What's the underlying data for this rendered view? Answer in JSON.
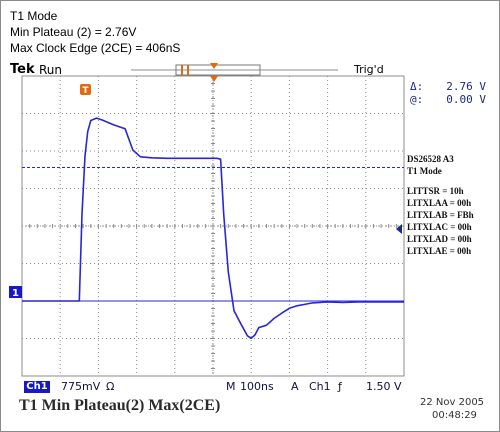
{
  "header_notes": [
    "T1 Mode",
    "Min Plateau (2) = 2.76V",
    "Max Clock Edge (2CE) = 406nS"
  ],
  "scope": {
    "brand": "Tek",
    "run_state": "Run",
    "trigger_state": "Trig'd",
    "trigger_marker_label": "T",
    "ch1_marker_label": "1",
    "cursor_delta_label": "Δ:",
    "cursor_delta_value": "2.76 V",
    "cursor_at_label": "@:",
    "cursor_at_value": "0.00 V",
    "info_lines": [
      "DS26528  A3",
      "T1 Mode",
      "",
      "LITTSR = 10h",
      "LITXLAA = 00h",
      "LITXLAB = FBh",
      "LITXLAC = 00h",
      "LITXLAD = 00h",
      "LITXLAE = 00h"
    ],
    "bottom": {
      "ch_label": "Ch1",
      "ch_scale": "775mV",
      "ch_coupling": "Ω",
      "timebase_prefix": "M",
      "timebase": "100ns",
      "trigger_prefix": "A",
      "trigger_source": "Ch1",
      "trigger_slope": "ƒ",
      "trigger_level": "1.50 V"
    },
    "caption": "T1 Min Plateau(2)  Max(2CE)",
    "date": "22 Nov 2005",
    "time": "00:48:29"
  },
  "colors": {
    "trace": "#2727d8",
    "grid": "#8c8c8c",
    "accent_orange": "#e06a10",
    "ch1_blue": "#1818c8"
  },
  "chart_data": {
    "type": "line",
    "title": "T1 Min Plateau(2)  Max(2CE)",
    "x_unit": "ns",
    "y_unit": "V",
    "x_per_div": 100,
    "y_per_div": 0.775,
    "xlim": [
      0,
      1000
    ],
    "ylim": [
      -1.55,
      4.65
    ],
    "grid": true,
    "cursors": {
      "delta_v": 2.76,
      "at_v": 0.0
    },
    "series": [
      {
        "x": [
          0,
          40,
          100,
          150,
          157,
          165,
          172,
          180,
          195,
          210,
          240,
          270,
          290,
          310,
          340,
          380,
          420,
          470,
          510,
          520,
          528,
          540,
          555,
          575,
          590,
          600,
          610,
          620,
          640,
          660,
          680,
          700,
          720,
          740,
          760,
          780,
          800,
          840,
          880,
          930,
          980,
          1000
        ],
        "y": [
          0.0,
          0.0,
          0.0,
          0.0,
          1.8,
          3.0,
          3.5,
          3.73,
          3.78,
          3.74,
          3.64,
          3.56,
          3.12,
          2.98,
          2.96,
          2.95,
          2.95,
          2.95,
          2.95,
          2.93,
          1.8,
          0.6,
          -0.2,
          -0.5,
          -0.72,
          -0.77,
          -0.7,
          -0.55,
          -0.5,
          -0.36,
          -0.25,
          -0.15,
          -0.1,
          -0.07,
          -0.04,
          -0.03,
          -0.02,
          -0.03,
          -0.02,
          -0.02,
          -0.02,
          -0.02
        ]
      }
    ]
  }
}
